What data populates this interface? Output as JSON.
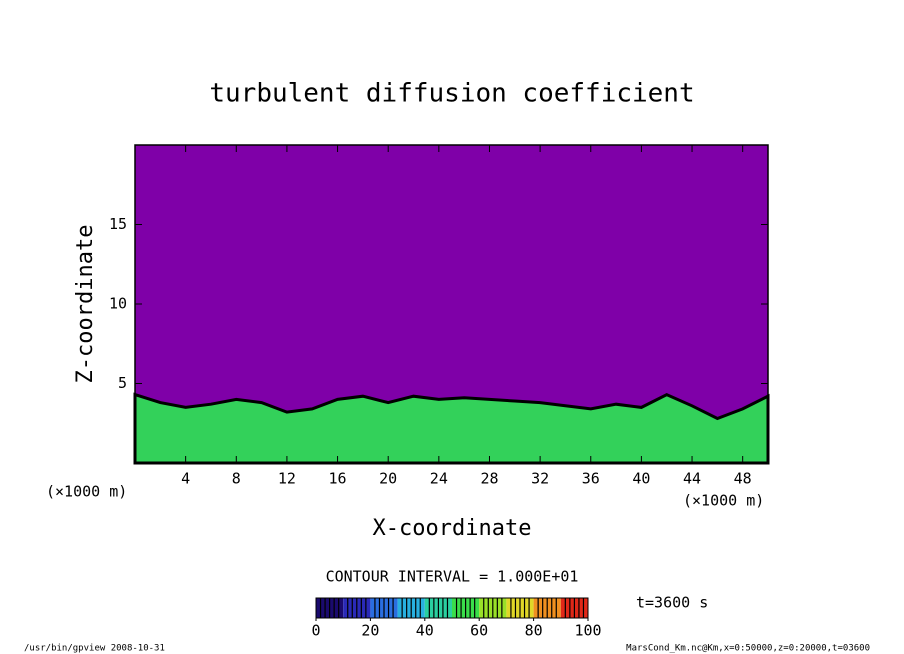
{
  "chart_data": {
    "type": "contour",
    "title": "turbulent diffusion coefficient",
    "x_label": "X-coordinate",
    "y_label": "Z-coordinate",
    "x_unit_left": "(×1000 m)",
    "x_unit_right": "(×1000 m)",
    "xlim": [
      0,
      50
    ],
    "xticks": [
      4,
      8,
      12,
      16,
      20,
      24,
      28,
      32,
      36,
      40,
      44,
      48
    ],
    "ylim": [
      0,
      20
    ],
    "yticks": [
      5,
      10,
      15
    ],
    "background_color": "#7f00a8",
    "x": [
      0,
      2,
      4,
      6,
      8,
      10,
      12,
      14,
      16,
      18,
      20,
      22,
      24,
      26,
      28,
      30,
      32,
      34,
      36,
      38,
      40,
      42,
      44,
      46,
      48,
      50
    ],
    "values": [
      4.3,
      3.8,
      3.5,
      3.7,
      4.0,
      3.8,
      3.2,
      3.4,
      4.0,
      4.2,
      3.8,
      4.2,
      4.0,
      4.1,
      4.0,
      3.9,
      3.8,
      3.6,
      3.4,
      3.7,
      3.5,
      4.3,
      3.6,
      2.8,
      3.4,
      4.2
    ],
    "color": "#33d15a",
    "contour_interval": "CONTOUR INTERVAL = 1.000E+01",
    "time_label": "t=3600 s",
    "colorbar": {
      "lim": [
        0,
        100
      ],
      "ticks": [
        0,
        20,
        40,
        60,
        80,
        100
      ],
      "colors": [
        "#1a0a6e",
        "#2a2ab8",
        "#2a6ee0",
        "#28b0e0",
        "#2ad0a0",
        "#3ade4a",
        "#9ae028",
        "#e0d828",
        "#f09020",
        "#e02818"
      ]
    },
    "footer_left": "/usr/bin/gpview  2008-10-31",
    "footer_right": "MarsCond_Km.nc@Km,x=0:50000,z=0:20000,t=03600"
  }
}
